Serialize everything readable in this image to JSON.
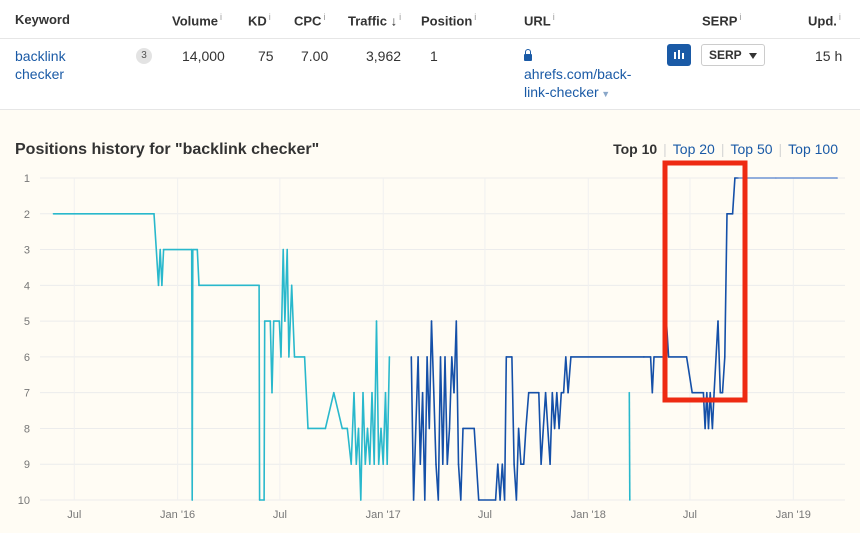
{
  "table": {
    "headers": [
      {
        "label": "Keyword",
        "info": ""
      },
      {
        "label": "Volume",
        "info": "i"
      },
      {
        "label": "KD",
        "info": "i"
      },
      {
        "label": "CPC",
        "info": "i"
      },
      {
        "label": "Traffic",
        "info": "i",
        "sort": "↓"
      },
      {
        "label": "Position",
        "info": "i"
      },
      {
        "label": "URL",
        "info": "i"
      },
      {
        "label": "SERP",
        "info": "i"
      },
      {
        "label": "Upd.",
        "info": "i"
      }
    ],
    "row": {
      "keyword_line1": "backlink",
      "keyword_line2": "checker",
      "badge": "3",
      "volume": "14,000",
      "kd": "75",
      "cpc": "7.00",
      "traffic": "3,962",
      "position": "1",
      "url_line1": "ahrefs.com/back-",
      "url_line2": "link-checker",
      "serp_button": "SERP",
      "updated": "15 h"
    }
  },
  "panel": {
    "title": "Positions history for \"backlink checker\"",
    "tabs": [
      "Top 10",
      "Top 20",
      "Top 50",
      "Top 100"
    ],
    "active_tab": "Top 10"
  },
  "colors": {
    "link": "#1a5aa6",
    "series_light": "#29b8cc",
    "series_dark": "#1550a8",
    "series_top": "#6f93d4",
    "highlight": "#ee2a12",
    "panel_bg": "#fffcf4"
  },
  "chart_data": {
    "type": "line",
    "title": "Positions history for \"backlink checker\"",
    "xlabel": "",
    "ylabel": "",
    "x_ticks": [
      "Jul",
      "Jan '16",
      "Jul",
      "Jan '17",
      "Jul",
      "Jan '18",
      "Jul",
      "Jan '19"
    ],
    "y_ticks": [
      1,
      2,
      3,
      4,
      5,
      6,
      7,
      8,
      9,
      10
    ],
    "ylim": [
      1,
      10
    ],
    "y_inverted": true,
    "grid": true,
    "series": [
      {
        "color": "#29b8cc",
        "points": [
          [
            "2015-05-25",
            2
          ],
          [
            "2015-11-20",
            2
          ],
          [
            "2015-11-24",
            3
          ],
          [
            "2015-11-28",
            4
          ],
          [
            "2015-12-01",
            3
          ],
          [
            "2015-12-04",
            4
          ],
          [
            "2015-12-07",
            3
          ],
          [
            "2016-01-26",
            3
          ],
          [
            "2016-01-27",
            10
          ],
          [
            "2016-01-28",
            3
          ],
          [
            "2016-02-05",
            3
          ],
          [
            "2016-02-08",
            4
          ],
          [
            "2016-05-25",
            4
          ],
          [
            "2016-05-26",
            10
          ],
          [
            "2016-06-03",
            10
          ],
          [
            "2016-06-04",
            5
          ],
          [
            "2016-06-14",
            5
          ],
          [
            "2016-06-17",
            7
          ],
          [
            "2016-06-20",
            5
          ],
          [
            "2016-06-30",
            5
          ],
          [
            "2016-07-03",
            6
          ],
          [
            "2016-07-07",
            3
          ],
          [
            "2016-07-10",
            5
          ],
          [
            "2016-07-14",
            3
          ],
          [
            "2016-07-17",
            6
          ],
          [
            "2016-07-22",
            4
          ],
          [
            "2016-07-27",
            6
          ],
          [
            "2016-08-14",
            6
          ],
          [
            "2016-08-20",
            8
          ],
          [
            "2016-09-20",
            8
          ],
          [
            "2016-10-05",
            7
          ],
          [
            "2016-10-20",
            8
          ],
          [
            "2016-10-29",
            8
          ],
          [
            "2016-11-05",
            9
          ],
          [
            "2016-11-10",
            7
          ],
          [
            "2016-11-14",
            9
          ],
          [
            "2016-11-18",
            8
          ],
          [
            "2016-11-22",
            10
          ],
          [
            "2016-11-26",
            7
          ],
          [
            "2016-11-30",
            9
          ],
          [
            "2016-12-04",
            8
          ],
          [
            "2016-12-08",
            9
          ],
          [
            "2016-12-12",
            7
          ],
          [
            "2016-12-16",
            9
          ],
          [
            "2016-12-20",
            5
          ],
          [
            "2016-12-24",
            9
          ],
          [
            "2016-12-28",
            8
          ],
          [
            "2017-01-01",
            9
          ],
          [
            "2017-01-05",
            7
          ],
          [
            "2017-01-08",
            9
          ],
          [
            "2017-01-12",
            6
          ]
        ]
      },
      {
        "color": "#1550a8",
        "points": [
          [
            "2017-02-20",
            6
          ],
          [
            "2017-02-24",
            10
          ],
          [
            "2017-02-28",
            8
          ],
          [
            "2017-03-04",
            6
          ],
          [
            "2017-03-08",
            9
          ],
          [
            "2017-03-12",
            7
          ],
          [
            "2017-03-16",
            10
          ],
          [
            "2017-03-20",
            6
          ],
          [
            "2017-03-24",
            8
          ],
          [
            "2017-03-28",
            5
          ],
          [
            "2017-04-01",
            7
          ],
          [
            "2017-04-05",
            9
          ],
          [
            "2017-04-09",
            10
          ],
          [
            "2017-04-13",
            6
          ],
          [
            "2017-04-17",
            9
          ],
          [
            "2017-04-21",
            6
          ],
          [
            "2017-04-25",
            9
          ],
          [
            "2017-04-29",
            8
          ],
          [
            "2017-05-03",
            6
          ],
          [
            "2017-05-07",
            7
          ],
          [
            "2017-05-11",
            5
          ],
          [
            "2017-05-15",
            9
          ],
          [
            "2017-05-19",
            10
          ],
          [
            "2017-05-23",
            8
          ],
          [
            "2017-06-12",
            8
          ],
          [
            "2017-06-20",
            10
          ],
          [
            "2017-07-20",
            10
          ],
          [
            "2017-07-24",
            9
          ],
          [
            "2017-07-28",
            10
          ],
          [
            "2017-08-01",
            9
          ],
          [
            "2017-08-05",
            10
          ],
          [
            "2017-08-08",
            6
          ],
          [
            "2017-08-18",
            6
          ],
          [
            "2017-08-22",
            9
          ],
          [
            "2017-08-26",
            10
          ],
          [
            "2017-08-30",
            8
          ],
          [
            "2017-09-03",
            9
          ],
          [
            "2017-09-08",
            9
          ],
          [
            "2017-09-12",
            8
          ],
          [
            "2017-09-17",
            7
          ],
          [
            "2017-10-05",
            7
          ],
          [
            "2017-10-09",
            9
          ],
          [
            "2017-10-13",
            8
          ],
          [
            "2017-10-17",
            7
          ],
          [
            "2017-10-21",
            8
          ],
          [
            "2017-10-25",
            9
          ],
          [
            "2017-10-29",
            7
          ],
          [
            "2017-11-02",
            8
          ],
          [
            "2017-11-06",
            7
          ],
          [
            "2017-11-10",
            8
          ],
          [
            "2017-11-14",
            7
          ],
          [
            "2017-11-18",
            7
          ],
          [
            "2017-11-22",
            6
          ],
          [
            "2017-11-26",
            7
          ],
          [
            "2017-12-01",
            6
          ],
          [
            "2018-04-10",
            6
          ],
          [
            "2018-04-22",
            6
          ],
          [
            "2018-04-25",
            7
          ],
          [
            "2018-04-28",
            6
          ],
          [
            "2018-05-15",
            6
          ],
          [
            "2018-05-20",
            5
          ],
          [
            "2018-05-24",
            6
          ],
          [
            "2018-06-25",
            6
          ],
          [
            "2018-07-05",
            7
          ],
          [
            "2018-07-25",
            7
          ],
          [
            "2018-07-28",
            8
          ],
          [
            "2018-07-31",
            7
          ],
          [
            "2018-08-03",
            8
          ],
          [
            "2018-08-06",
            7
          ],
          [
            "2018-08-10",
            8
          ],
          [
            "2018-08-13",
            7
          ],
          [
            "2018-08-20",
            5
          ],
          [
            "2018-08-24",
            7
          ],
          [
            "2018-08-28",
            7
          ],
          [
            "2018-09-01",
            6
          ],
          [
            "2018-09-05",
            2
          ],
          [
            "2018-09-15",
            2
          ],
          [
            "2018-09-19",
            1
          ],
          [
            "2018-09-25",
            1
          ]
        ]
      },
      {
        "color": "#6f93d4",
        "points": [
          [
            "2018-09-25",
            1
          ],
          [
            "2018-12-01",
            1
          ],
          [
            "2019-03-20",
            1
          ]
        ]
      },
      {
        "color": "#29b8cc",
        "points": [
          [
            "2018-03-15",
            7
          ],
          [
            "2018-03-16",
            10
          ]
        ]
      }
    ]
  }
}
